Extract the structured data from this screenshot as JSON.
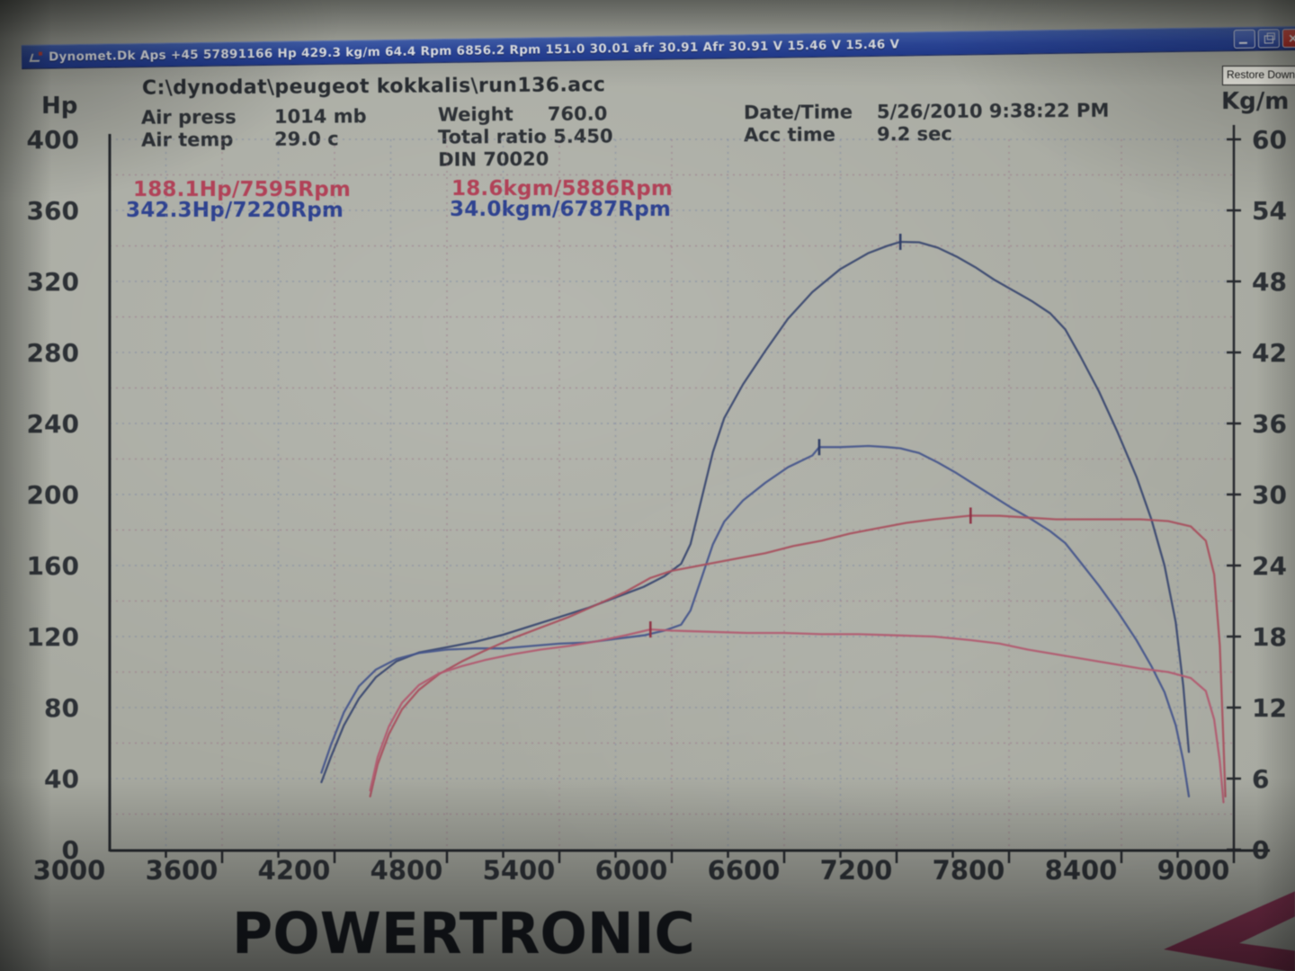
{
  "window": {
    "title": "Dynomet.Dk Aps  +45 57891166 Hp 429.3 kg/m 64.4 Rpm 6856.2 Rpm 151.0   30.01 afr 30.91 Afr 30.91 V 15.46 V 15.46 V",
    "tooltip": "Restore Down",
    "icons": {
      "app_icon": "dynomet-logo",
      "minimize_icon": "minimize",
      "restore_icon": "restore-down",
      "close_icon": "close",
      "close_glyph": "×"
    }
  },
  "file_path": "C:\\dynodat\\peugeot kokkalis\\run136.acc",
  "info": {
    "air_press_label": "Air press",
    "air_press_value": "1014 mb",
    "air_temp_label": "Air temp",
    "air_temp_value": "29.0 c",
    "weight_label": "Weight",
    "weight_value": "760.0",
    "total_ratio_label": "Total ratio",
    "total_ratio_value": "5.450",
    "din_label": "DIN 70020",
    "datetime_label": "Date/Time",
    "datetime_value": "5/26/2010 9:38:22 PM",
    "acc_time_label": "Acc time",
    "acc_time_value": "9.2 sec"
  },
  "peak_annotations": {
    "red_hp": "188.1Hp/7595Rpm",
    "blue_hp": "342.3Hp/7220Rpm",
    "red_torque": "18.6kgm/5886Rpm",
    "blue_torque": "34.0kgm/6787Rpm"
  },
  "branding": {
    "name": "POWERTRONIC"
  },
  "colors": {
    "titlebar_blue": "#2c49a4",
    "close_red": "#b02c26",
    "annotation_red": "#b14258",
    "annotation_blue": "#2e4290",
    "arrow_magenta": "#872a4e",
    "grid_pink": "#9a7487",
    "grid_blue": "#7a85a3",
    "axis_dark": "#26292e"
  },
  "chart_data": {
    "type": "line",
    "x_axis": {
      "ticks": [
        3000,
        3600,
        4200,
        4800,
        5400,
        6000,
        6600,
        7200,
        7800,
        8400,
        9000
      ],
      "range": [
        3000,
        9000
      ]
    },
    "left_axis": {
      "label": "Hp",
      "ticks": [
        400,
        360,
        320,
        280,
        240,
        200,
        160,
        120,
        80,
        40,
        0
      ],
      "range": [
        0,
        400
      ]
    },
    "right_axis": {
      "label": "Kg/m",
      "ticks": [
        60,
        54,
        48,
        42,
        36,
        30,
        24,
        18,
        12,
        6,
        0
      ],
      "range": [
        0,
        60
      ]
    },
    "grid": {
      "x_step": 300,
      "y_step_hp": 20
    },
    "legend": "none",
    "series": [
      {
        "name": "power-run-blue",
        "axis": "left",
        "color": "#3a4870",
        "peak": "342.3Hp/7220Rpm",
        "points": [
          [
            4130,
            38
          ],
          [
            4180,
            52
          ],
          [
            4250,
            70
          ],
          [
            4330,
            85
          ],
          [
            4420,
            97
          ],
          [
            4530,
            106
          ],
          [
            4650,
            111
          ],
          [
            4800,
            114
          ],
          [
            4950,
            117
          ],
          [
            5100,
            121
          ],
          [
            5250,
            126
          ],
          [
            5400,
            131
          ],
          [
            5550,
            136
          ],
          [
            5700,
            142
          ],
          [
            5850,
            148
          ],
          [
            5960,
            154
          ],
          [
            6050,
            161
          ],
          [
            6100,
            172
          ],
          [
            6160,
            198
          ],
          [
            6220,
            224
          ],
          [
            6280,
            243
          ],
          [
            6380,
            262
          ],
          [
            6500,
            281
          ],
          [
            6620,
            299
          ],
          [
            6750,
            314
          ],
          [
            6900,
            327
          ],
          [
            7050,
            336
          ],
          [
            7150,
            340
          ],
          [
            7220,
            342.3
          ],
          [
            7320,
            342
          ],
          [
            7420,
            339
          ],
          [
            7520,
            334
          ],
          [
            7620,
            328
          ],
          [
            7720,
            321
          ],
          [
            7820,
            315
          ],
          [
            7920,
            309
          ],
          [
            8020,
            302
          ],
          [
            8100,
            293
          ],
          [
            8180,
            278
          ],
          [
            8280,
            258
          ],
          [
            8380,
            235
          ],
          [
            8480,
            210
          ],
          [
            8560,
            186
          ],
          [
            8630,
            160
          ],
          [
            8690,
            128
          ],
          [
            8730,
            92
          ],
          [
            8760,
            55
          ]
        ]
      },
      {
        "name": "torque-run-blue",
        "axis": "right",
        "color": "#45568c",
        "peak": "34.0kgm/6787Rpm",
        "points": [
          [
            4130,
            6.5
          ],
          [
            4180,
            8.8
          ],
          [
            4250,
            11.6
          ],
          [
            4330,
            13.8
          ],
          [
            4420,
            15.2
          ],
          [
            4530,
            16.1
          ],
          [
            4650,
            16.6
          ],
          [
            4800,
            16.9
          ],
          [
            4950,
            17.0
          ],
          [
            5100,
            17.0
          ],
          [
            5250,
            17.2
          ],
          [
            5400,
            17.4
          ],
          [
            5550,
            17.5
          ],
          [
            5700,
            17.8
          ],
          [
            5850,
            18.1
          ],
          [
            5960,
            18.5
          ],
          [
            6050,
            19.0
          ],
          [
            6100,
            20.2
          ],
          [
            6160,
            23.0
          ],
          [
            6220,
            25.8
          ],
          [
            6280,
            27.7
          ],
          [
            6380,
            29.5
          ],
          [
            6500,
            31.0
          ],
          [
            6620,
            32.3
          ],
          [
            6750,
            33.3
          ],
          [
            6787,
            34.0
          ],
          [
            6900,
            34.0
          ],
          [
            7050,
            34.1
          ],
          [
            7150,
            34.0
          ],
          [
            7220,
            33.9
          ],
          [
            7320,
            33.5
          ],
          [
            7420,
            32.7
          ],
          [
            7520,
            31.8
          ],
          [
            7620,
            30.8
          ],
          [
            7720,
            29.8
          ],
          [
            7820,
            28.8
          ],
          [
            7920,
            27.9
          ],
          [
            8020,
            26.9
          ],
          [
            8100,
            25.9
          ],
          [
            8180,
            24.3
          ],
          [
            8280,
            22.3
          ],
          [
            8380,
            20.1
          ],
          [
            8480,
            17.7
          ],
          [
            8560,
            15.5
          ],
          [
            8630,
            13.3
          ],
          [
            8690,
            10.5
          ],
          [
            8730,
            7.5
          ],
          [
            8760,
            4.5
          ]
        ]
      },
      {
        "name": "power-run-red",
        "axis": "left",
        "color": "#a8505e",
        "peak": "188.1Hp/7595Rpm",
        "points": [
          [
            4390,
            30
          ],
          [
            4430,
            48
          ],
          [
            4490,
            65
          ],
          [
            4560,
            79
          ],
          [
            4650,
            90
          ],
          [
            4760,
            99
          ],
          [
            4880,
            106
          ],
          [
            5000,
            112
          ],
          [
            5150,
            119
          ],
          [
            5300,
            125
          ],
          [
            5450,
            131
          ],
          [
            5600,
            138
          ],
          [
            5750,
            145
          ],
          [
            5886,
            153
          ],
          [
            6000,
            157
          ],
          [
            6100,
            159
          ],
          [
            6200,
            161
          ],
          [
            6350,
            164
          ],
          [
            6500,
            167
          ],
          [
            6650,
            171
          ],
          [
            6800,
            174
          ],
          [
            6950,
            178
          ],
          [
            7100,
            181
          ],
          [
            7250,
            184
          ],
          [
            7400,
            186
          ],
          [
            7595,
            188.1
          ],
          [
            7750,
            188
          ],
          [
            7900,
            187
          ],
          [
            8050,
            186
          ],
          [
            8200,
            186
          ],
          [
            8350,
            186
          ],
          [
            8500,
            186
          ],
          [
            8650,
            185
          ],
          [
            8770,
            182
          ],
          [
            8850,
            174
          ],
          [
            8895,
            155
          ],
          [
            8925,
            115
          ],
          [
            8945,
            60
          ],
          [
            8955,
            30
          ]
        ]
      },
      {
        "name": "torque-run-red",
        "axis": "right",
        "color": "#b25a70",
        "peak": "18.6kgm/5886Rpm",
        "points": [
          [
            4390,
            5.0
          ],
          [
            4430,
            7.8
          ],
          [
            4490,
            10.4
          ],
          [
            4560,
            12.4
          ],
          [
            4650,
            13.9
          ],
          [
            4760,
            14.9
          ],
          [
            4880,
            15.5
          ],
          [
            5000,
            16.0
          ],
          [
            5150,
            16.5
          ],
          [
            5300,
            16.9
          ],
          [
            5450,
            17.2
          ],
          [
            5600,
            17.6
          ],
          [
            5750,
            18.1
          ],
          [
            5886,
            18.6
          ],
          [
            6000,
            18.5
          ],
          [
            6200,
            18.4
          ],
          [
            6400,
            18.3
          ],
          [
            6600,
            18.3
          ],
          [
            6800,
            18.2
          ],
          [
            7000,
            18.2
          ],
          [
            7200,
            18.1
          ],
          [
            7400,
            18.0
          ],
          [
            7595,
            17.7
          ],
          [
            7750,
            17.4
          ],
          [
            7900,
            16.9
          ],
          [
            8050,
            16.5
          ],
          [
            8200,
            16.1
          ],
          [
            8350,
            15.7
          ],
          [
            8500,
            15.3
          ],
          [
            8650,
            15.0
          ],
          [
            8770,
            14.5
          ],
          [
            8850,
            13.4
          ],
          [
            8895,
            11.0
          ],
          [
            8925,
            7.5
          ],
          [
            8945,
            4.0
          ]
        ]
      }
    ],
    "peak_markers": [
      {
        "rpm": 7220,
        "value": 342.3,
        "axis": "left",
        "color": "#2c3a66"
      },
      {
        "rpm": 6787,
        "value": 34.0,
        "axis": "right",
        "color": "#2c3a66"
      },
      {
        "rpm": 7595,
        "value": 188.1,
        "axis": "left",
        "color": "#8e2f42"
      },
      {
        "rpm": 5886,
        "value": 18.6,
        "axis": "right",
        "color": "#8e2f42"
      }
    ]
  }
}
